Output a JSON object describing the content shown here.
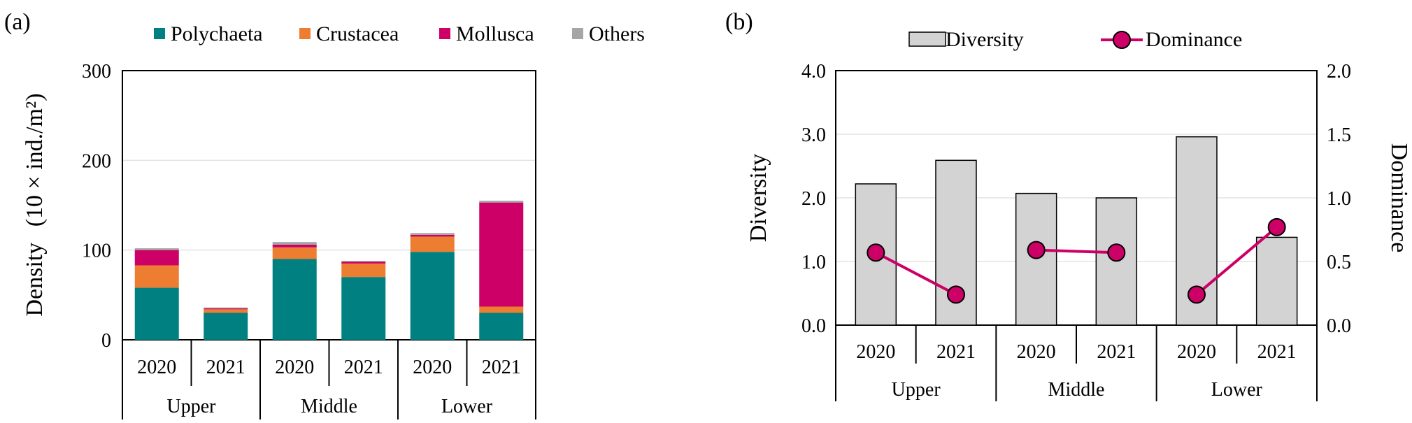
{
  "chart_data": [
    {
      "panel_label": "(a)",
      "type": "bar",
      "stacked": true,
      "ylabel": "Density",
      "ylabel_unit": "(10 × ind./m²)",
      "ylim": [
        0,
        300
      ],
      "yticks": [
        "0",
        "100",
        "200",
        "300"
      ],
      "groups": [
        "Upper",
        "Middle",
        "Lower"
      ],
      "categories": [
        "2020",
        "2021",
        "2020",
        "2021",
        "2020",
        "2021"
      ],
      "grid": true,
      "legend_position": "top",
      "series": [
        {
          "name": "Polychaeta",
          "color": "#008080",
          "values": [
            58,
            30,
            90,
            70,
            98,
            30
          ]
        },
        {
          "name": "Crustacea",
          "color": "#ED7D31",
          "values": [
            25,
            4,
            13,
            15,
            17,
            7
          ]
        },
        {
          "name": "Mollusca",
          "color": "#CC0066",
          "values": [
            17,
            1,
            3,
            2,
            2,
            116
          ]
        },
        {
          "name": "Others",
          "color": "#A6A6A6",
          "values": [
            2,
            1,
            3,
            1,
            2,
            2
          ]
        }
      ]
    },
    {
      "panel_label": "(b)",
      "type": "bar+line",
      "ylabel": "Diversity",
      "y2label": "Dominance",
      "ylim": [
        0,
        4
      ],
      "y2lim": [
        0,
        2
      ],
      "yticks": [
        "0.0",
        "1.0",
        "2.0",
        "3.0",
        "4.0"
      ],
      "y2ticks": [
        "0.0",
        "0.5",
        "1.0",
        "1.5",
        "2.0"
      ],
      "groups": [
        "Upper",
        "Middle",
        "Lower"
      ],
      "categories": [
        "2020",
        "2021",
        "2020",
        "2021",
        "2020",
        "2021"
      ],
      "grid": true,
      "legend_position": "top",
      "series": [
        {
          "name": "Diversity",
          "kind": "bar",
          "axis": "left",
          "color": "#D3D3D3",
          "values": [
            2.22,
            2.59,
            2.07,
            2.0,
            2.96,
            1.38
          ]
        },
        {
          "name": "Dominance",
          "kind": "line",
          "axis": "right",
          "color": "#CC0066",
          "values": [
            0.57,
            0.24,
            0.59,
            0.57,
            0.24,
            0.77
          ],
          "segments": [
            [
              0,
              1
            ],
            [
              2,
              3
            ],
            [
              4,
              5
            ]
          ]
        }
      ]
    }
  ]
}
